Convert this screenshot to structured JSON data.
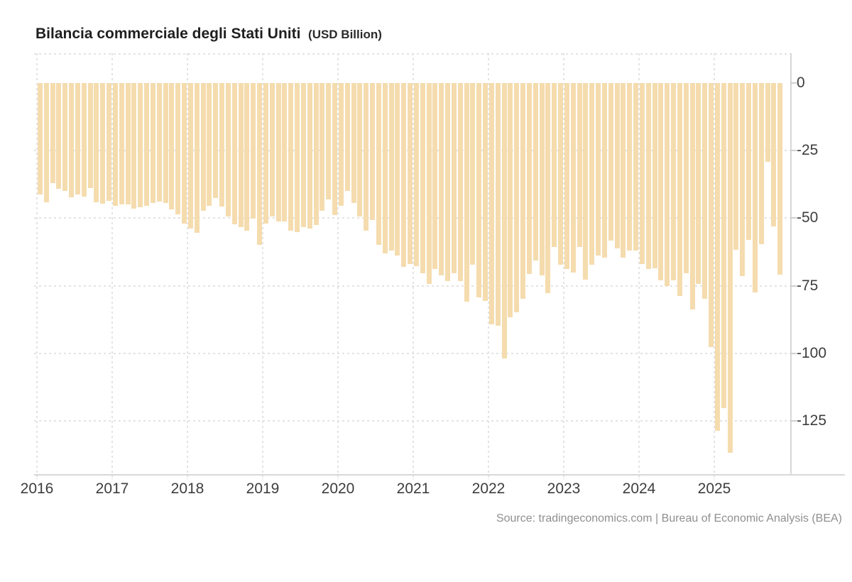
{
  "header": {
    "title": "Bilancia commerciale degli Stati Uniti",
    "unit_label": "(USD Billion)"
  },
  "footer": {
    "source": "Source: tradingeconomics.com | Bureau of Economic Analysis (BEA)"
  },
  "colors": {
    "bar": "#f5dcae",
    "grid": "#e3e3e3",
    "axis": "#d8d8d8",
    "tick_text": "#3d3d3d",
    "title_text": "#1f1f1f",
    "source_text": "#8f8f8f",
    "background": "#ffffff"
  },
  "y_axis": {
    "tick_labels": [
      "0",
      "-25",
      "-50",
      "-75",
      "-100",
      "-125"
    ],
    "tick_values": [
      0,
      -25,
      -50,
      -75,
      -100,
      -125
    ]
  },
  "x_axis": {
    "tick_labels": [
      "2016",
      "2017",
      "2018",
      "2019",
      "2020",
      "2021",
      "2022",
      "2023",
      "2024",
      "2025"
    ]
  },
  "chart_data": {
    "type": "bar",
    "title": "Bilancia commerciale degli Stati Uniti",
    "unit": "USD Billion",
    "frequency": "monthly",
    "x_start": "2016-01",
    "x_end": "2025-11",
    "ylim": [
      -145,
      11
    ],
    "grid": "dotted",
    "legend_position": "none",
    "months": [
      "2016-01",
      "2016-02",
      "2016-03",
      "2016-04",
      "2016-05",
      "2016-06",
      "2016-07",
      "2016-08",
      "2016-09",
      "2016-10",
      "2016-11",
      "2016-12",
      "2017-01",
      "2017-02",
      "2017-03",
      "2017-04",
      "2017-05",
      "2017-06",
      "2017-07",
      "2017-08",
      "2017-09",
      "2017-10",
      "2017-11",
      "2017-12",
      "2018-01",
      "2018-02",
      "2018-03",
      "2018-04",
      "2018-05",
      "2018-06",
      "2018-07",
      "2018-08",
      "2018-09",
      "2018-10",
      "2018-11",
      "2018-12",
      "2019-01",
      "2019-02",
      "2019-03",
      "2019-04",
      "2019-05",
      "2019-06",
      "2019-07",
      "2019-08",
      "2019-09",
      "2019-10",
      "2019-11",
      "2019-12",
      "2020-01",
      "2020-02",
      "2020-03",
      "2020-04",
      "2020-05",
      "2020-06",
      "2020-07",
      "2020-08",
      "2020-09",
      "2020-10",
      "2020-11",
      "2020-12",
      "2021-01",
      "2021-02",
      "2021-03",
      "2021-04",
      "2021-05",
      "2021-06",
      "2021-07",
      "2021-08",
      "2021-09",
      "2021-10",
      "2021-11",
      "2021-12",
      "2022-01",
      "2022-02",
      "2022-03",
      "2022-04",
      "2022-05",
      "2022-06",
      "2022-07",
      "2022-08",
      "2022-09",
      "2022-10",
      "2022-11",
      "2022-12",
      "2023-01",
      "2023-02",
      "2023-03",
      "2023-04",
      "2023-05",
      "2023-06",
      "2023-07",
      "2023-08",
      "2023-09",
      "2023-10",
      "2023-11",
      "2023-12",
      "2024-01",
      "2024-02",
      "2024-03",
      "2024-04",
      "2024-05",
      "2024-06",
      "2024-07",
      "2024-08",
      "2024-09",
      "2024-10",
      "2024-11",
      "2024-12",
      "2025-01",
      "2025-02",
      "2025-03",
      "2025-04",
      "2025-05",
      "2025-06",
      "2025-07",
      "2025-08",
      "2025-09",
      "2025-10",
      "2025-11"
    ],
    "values": [
      -41.3,
      -44.1,
      -37.1,
      -39.1,
      -39.9,
      -42.4,
      -41.3,
      -42.0,
      -38.9,
      -44.1,
      -44.7,
      -43.7,
      -45.5,
      -44.9,
      -45.0,
      -46.4,
      -46.0,
      -45.5,
      -44.3,
      -43.9,
      -44.3,
      -46.7,
      -48.6,
      -52.1,
      -53.9,
      -55.5,
      -47.2,
      -45.5,
      -42.6,
      -45.7,
      -49.3,
      -52.3,
      -53.3,
      -54.6,
      -50.2,
      -59.9,
      -51.9,
      -49.3,
      -51.1,
      -51.2,
      -54.5,
      -55.2,
      -53.4,
      -53.9,
      -52.5,
      -47.2,
      -43.1,
      -48.9,
      -45.3,
      -39.8,
      -44.4,
      -49.4,
      -54.6,
      -50.7,
      -60.0,
      -63.1,
      -62.1,
      -63.9,
      -68.1,
      -66.9,
      -67.7,
      -70.5,
      -74.4,
      -68.9,
      -71.2,
      -73.2,
      -70.3,
      -73.2,
      -80.9,
      -67.1,
      -79.3,
      -80.7,
      -89.2,
      -89.7,
      -102.0,
      -86.7,
      -84.9,
      -79.8,
      -70.7,
      -65.7,
      -71.1,
      -77.8,
      -60.6,
      -67.2,
      -68.7,
      -70.0,
      -60.6,
      -72.8,
      -67.1,
      -63.7,
      -64.7,
      -58.4,
      -61.3,
      -64.5,
      -61.9,
      -62.0,
      -66.9,
      -68.7,
      -68.6,
      -73.0,
      -75.0,
      -73.0,
      -78.9,
      -70.5,
      -83.8,
      -74.3,
      -79.8,
      -97.7,
      -128.6,
      -120.2,
      -136.9,
      -61.6,
      -71.5,
      -58.0,
      -77.5,
      -59.5,
      -29.1,
      -53.0,
      -71.0
    ]
  }
}
